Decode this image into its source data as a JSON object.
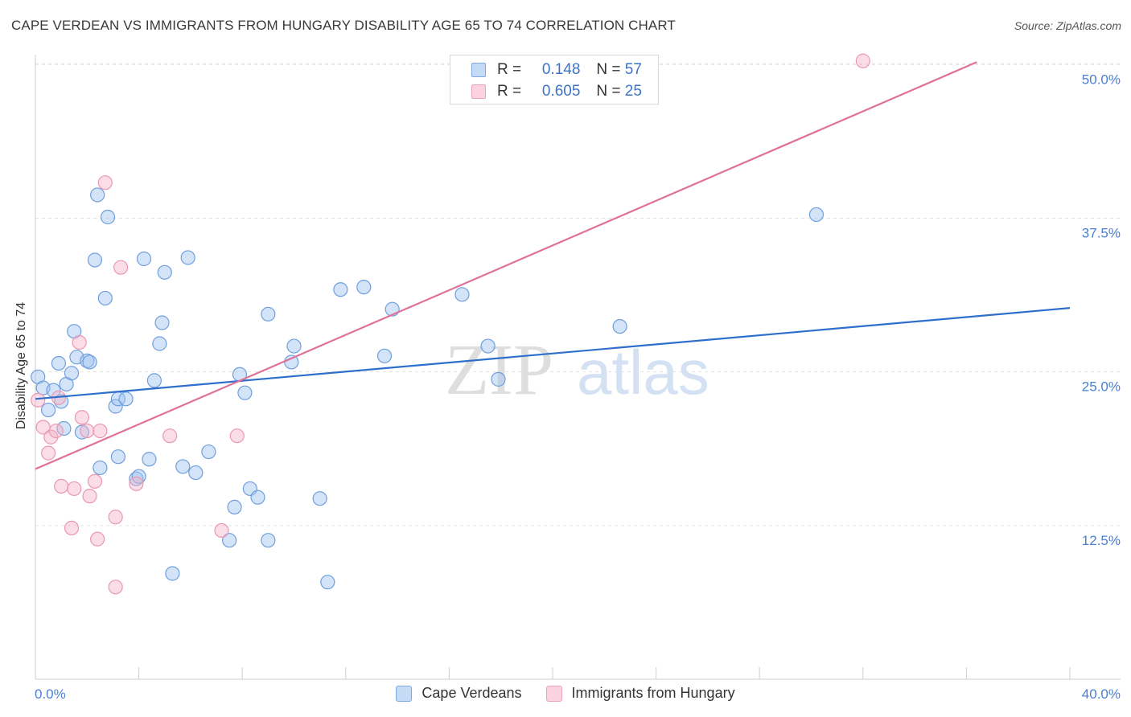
{
  "title": "CAPE VERDEAN VS IMMIGRANTS FROM HUNGARY DISABILITY AGE 65 TO 74 CORRELATION CHART",
  "source": "Source: ZipAtlas.com",
  "watermark": {
    "zip": "ZIP",
    "atlas": "atlas"
  },
  "legend": {
    "rows": [
      {
        "r_label": "R =",
        "r_value": "0.148",
        "n_label": "N =",
        "n_value": "57"
      },
      {
        "r_label": "R =",
        "r_value": "0.605",
        "n_label": "N =",
        "n_value": "25"
      }
    ]
  },
  "chart_data": {
    "type": "scatter",
    "title": "CAPE VERDEAN VS IMMIGRANTS FROM HUNGARY DISABILITY AGE 65 TO 74 CORRELATION CHART",
    "xlabel": "",
    "ylabel": "Disability Age 65 to 74",
    "xlim": [
      0,
      40
    ],
    "ylim": [
      0,
      51.2
    ],
    "x_tick_labels": [
      "0.0%",
      "40.0%"
    ],
    "y_ticks": [
      12.5,
      25.0,
      37.5,
      50.0
    ],
    "y_tick_labels": [
      "12.5%",
      "25.0%",
      "37.5%",
      "50.0%"
    ],
    "grid": true,
    "legend_position": "top-center",
    "series": [
      {
        "name": "Cape Verdeans",
        "color": "#8db4e8",
        "line_color": "#2e6fcc",
        "trend": {
          "x": [
            0,
            40
          ],
          "y": [
            22.8,
            30.2
          ]
        },
        "points": [
          {
            "x": 0.1,
            "y": 24.6
          },
          {
            "x": 0.3,
            "y": 23.7
          },
          {
            "x": 0.5,
            "y": 21.9
          },
          {
            "x": 0.7,
            "y": 23.5
          },
          {
            "x": 0.9,
            "y": 25.7
          },
          {
            "x": 1.1,
            "y": 20.4
          },
          {
            "x": 1.2,
            "y": 24.0
          },
          {
            "x": 1.4,
            "y": 24.9
          },
          {
            "x": 1.5,
            "y": 28.3
          },
          {
            "x": 1.6,
            "y": 26.2
          },
          {
            "x": 1.8,
            "y": 20.1
          },
          {
            "x": 2.0,
            "y": 25.9
          },
          {
            "x": 2.1,
            "y": 25.8
          },
          {
            "x": 2.3,
            "y": 34.1
          },
          {
            "x": 2.4,
            "y": 39.4
          },
          {
            "x": 2.5,
            "y": 17.2
          },
          {
            "x": 2.7,
            "y": 31.0
          },
          {
            "x": 2.8,
            "y": 37.6
          },
          {
            "x": 3.1,
            "y": 22.2
          },
          {
            "x": 3.2,
            "y": 22.8
          },
          {
            "x": 3.2,
            "y": 18.1
          },
          {
            "x": 3.5,
            "y": 22.8
          },
          {
            "x": 3.9,
            "y": 16.3
          },
          {
            "x": 4.0,
            "y": 16.5
          },
          {
            "x": 4.2,
            "y": 34.2
          },
          {
            "x": 4.4,
            "y": 17.9
          },
          {
            "x": 4.6,
            "y": 24.3
          },
          {
            "x": 4.8,
            "y": 27.3
          },
          {
            "x": 4.9,
            "y": 29.0
          },
          {
            "x": 5.0,
            "y": 33.1
          },
          {
            "x": 5.3,
            "y": 8.6
          },
          {
            "x": 5.7,
            "y": 17.3
          },
          {
            "x": 5.9,
            "y": 34.3
          },
          {
            "x": 6.2,
            "y": 16.8
          },
          {
            "x": 6.7,
            "y": 18.5
          },
          {
            "x": 7.5,
            "y": 11.3
          },
          {
            "x": 7.7,
            "y": 14.0
          },
          {
            "x": 7.9,
            "y": 24.8
          },
          {
            "x": 8.1,
            "y": 23.3
          },
          {
            "x": 8.3,
            "y": 15.5
          },
          {
            "x": 8.6,
            "y": 14.8
          },
          {
            "x": 9.0,
            "y": 29.7
          },
          {
            "x": 9.0,
            "y": 11.3
          },
          {
            "x": 9.9,
            "y": 25.8
          },
          {
            "x": 10.0,
            "y": 27.1
          },
          {
            "x": 11.0,
            "y": 14.7
          },
          {
            "x": 11.3,
            "y": 7.9
          },
          {
            "x": 11.8,
            "y": 31.7
          },
          {
            "x": 12.7,
            "y": 31.9
          },
          {
            "x": 13.5,
            "y": 26.3
          },
          {
            "x": 13.8,
            "y": 30.1
          },
          {
            "x": 16.5,
            "y": 31.3
          },
          {
            "x": 17.5,
            "y": 27.1
          },
          {
            "x": 17.9,
            "y": 24.4
          },
          {
            "x": 22.6,
            "y": 28.7
          },
          {
            "x": 30.2,
            "y": 37.8
          },
          {
            "x": 1.0,
            "y": 22.6
          }
        ]
      },
      {
        "name": "Immigrants from Hungary",
        "color": "#f2a9c0",
        "line_color": "#e0709a",
        "trend": {
          "x": [
            0,
            36.4
          ],
          "y": [
            17.1,
            50.2
          ]
        },
        "points": [
          {
            "x": 0.1,
            "y": 22.7
          },
          {
            "x": 0.3,
            "y": 20.5
          },
          {
            "x": 0.5,
            "y": 18.4
          },
          {
            "x": 0.6,
            "y": 19.7
          },
          {
            "x": 0.8,
            "y": 20.2
          },
          {
            "x": 0.9,
            "y": 22.9
          },
          {
            "x": 1.0,
            "y": 15.7
          },
          {
            "x": 1.4,
            "y": 12.3
          },
          {
            "x": 1.5,
            "y": 15.5
          },
          {
            "x": 1.7,
            "y": 27.4
          },
          {
            "x": 1.8,
            "y": 21.3
          },
          {
            "x": 2.0,
            "y": 20.2
          },
          {
            "x": 2.1,
            "y": 14.9
          },
          {
            "x": 2.3,
            "y": 16.1
          },
          {
            "x": 2.4,
            "y": 11.4
          },
          {
            "x": 2.5,
            "y": 20.2
          },
          {
            "x": 2.7,
            "y": 40.4
          },
          {
            "x": 3.1,
            "y": 7.5
          },
          {
            "x": 3.1,
            "y": 13.2
          },
          {
            "x": 3.3,
            "y": 33.5
          },
          {
            "x": 3.9,
            "y": 15.9
          },
          {
            "x": 5.2,
            "y": 19.8
          },
          {
            "x": 7.2,
            "y": 12.1
          },
          {
            "x": 7.8,
            "y": 19.8
          },
          {
            "x": 32.0,
            "y": 50.3
          }
        ]
      }
    ]
  }
}
